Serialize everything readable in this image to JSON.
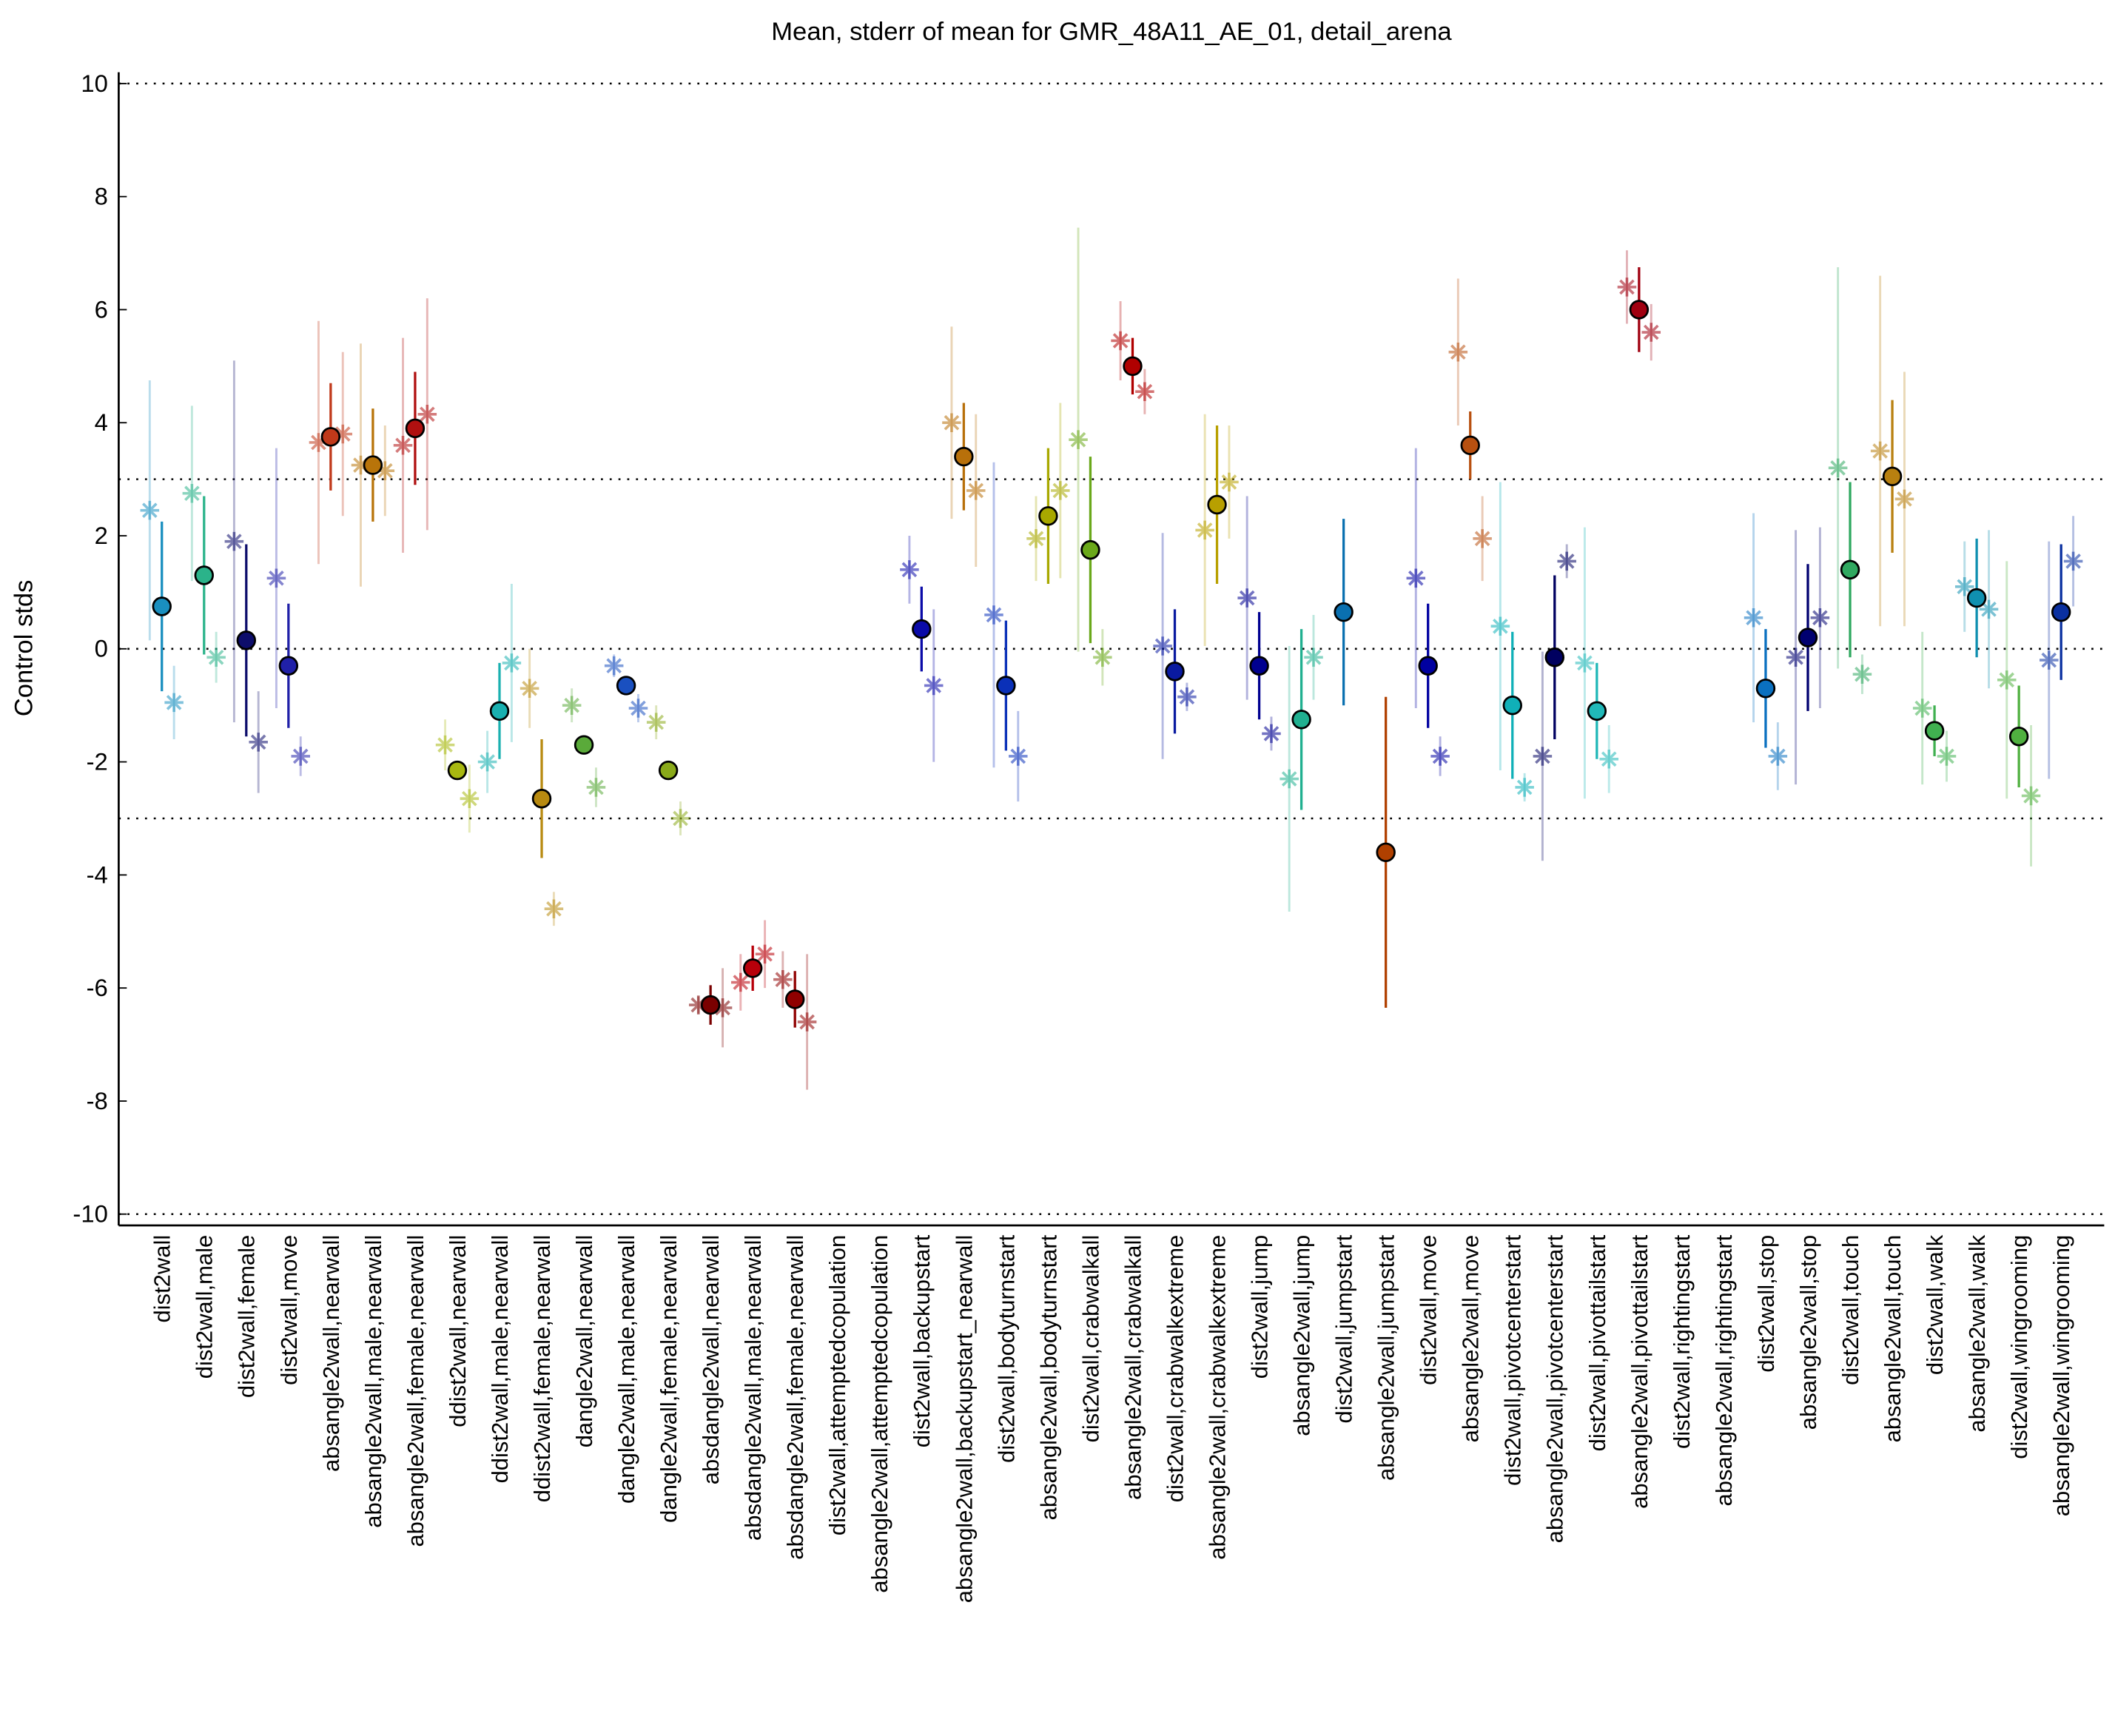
{
  "chart_data": {
    "type": "errorbar",
    "title": "Mean, stderr of mean for GMR_48A11_AE_01, detail_arena",
    "ylabel": "Control stds",
    "ylim": [
      -10.2,
      10.2
    ],
    "yticks": [
      -10,
      -8,
      -6,
      -4,
      -2,
      0,
      2,
      4,
      6,
      8,
      10
    ],
    "hlines": [
      -10,
      -3,
      0,
      3,
      10
    ],
    "categories": [
      "dist2wall",
      "dist2wall,male",
      "dist2wall,female",
      "dist2wall,move",
      "absangle2wall,nearwall",
      "absangle2wall,male,nearwall",
      "absangle2wall,female,nearwall",
      "ddist2wall,nearwall",
      "ddist2wall,male,nearwall",
      "ddist2wall,female,nearwall",
      "dangle2wall,nearwall",
      "dangle2wall,male,nearwall",
      "dangle2wall,female,nearwall",
      "absdangle2wall,nearwall",
      "absdangle2wall,male,nearwall",
      "absdangle2wall,female,nearwall",
      "dist2wall,attemptedcopulation",
      "absangle2wall,attemptedcopulation",
      "dist2wall,backupstart",
      "absangle2wall,backupstart_nearwall",
      "dist2wall,bodyturnstart",
      "absangle2wall,bodyturnstart",
      "dist2wall,crabwalkall",
      "absangle2wall,crabwalkall",
      "dist2wall,crabwalkextreme",
      "absangle2wall,crabwalkextreme",
      "dist2wall,jump",
      "absangle2wall,jump",
      "dist2wall,jumpstart",
      "absangle2wall,jumpstart",
      "dist2wall,move",
      "absangle2wall,move",
      "dist2wall,pivotcenterstart",
      "absangle2wall,pivotcenterstart",
      "dist2wall,pivottailstart",
      "absangle2wall,pivottailstart",
      "dist2wall,rightingstart",
      "absangle2wall,rightingstart",
      "dist2wall,stop",
      "absangle2wall,stop",
      "dist2wall,touch",
      "absangle2wall,touch",
      "dist2wall,walk",
      "absangle2wall,walk",
      "dist2wall,wingrooming",
      "absangle2wall,wingrooming"
    ],
    "colors": [
      "#1a8fbf",
      "#2bb38a",
      "#0d0d6b",
      "#2020a8",
      "#c0391a",
      "#b8740a",
      "#b01010",
      "#a8b810",
      "#1ab0b0",
      "#b88a10",
      "#5aaa3a",
      "#1a50c0",
      "#8aaa1a",
      "#7a0000",
      "#b8000a",
      "#900000",
      "#999999",
      "#999999",
      "#0a0aa8",
      "#b8700a",
      "#0a30b8",
      "#a8a800",
      "#6aa81a",
      "#b00000",
      "#0a1aa0",
      "#b8a000",
      "#000090",
      "#20b090",
      "#0a70b0",
      "#b04000",
      "#0000a0",
      "#b85010",
      "#10b0b8",
      "#000060",
      "#20b8b8",
      "#a00010",
      "#999999",
      "#999999",
      "#0a70c0",
      "#000070",
      "#30a860",
      "#b88010",
      "#40b050",
      "#1090b0",
      "#50b040",
      "#0a30a0"
    ],
    "series": [
      {
        "marker": "circle",
        "values": [
          0.75,
          1.3,
          0.15,
          -0.3,
          3.75,
          3.25,
          3.9,
          -2.15,
          -1.1,
          -2.65,
          -1.7,
          -0.65,
          -2.15,
          -6.3,
          -5.65,
          -6.2,
          null,
          null,
          0.35,
          3.4,
          -0.65,
          2.35,
          1.75,
          5.0,
          -0.4,
          2.55,
          -0.3,
          -1.25,
          0.65,
          -3.6,
          -0.3,
          3.6,
          -1.0,
          -0.15,
          -1.1,
          6.0,
          null,
          null,
          -0.7,
          0.2,
          1.4,
          3.05,
          -1.45,
          0.9,
          -1.55,
          0.65
        ],
        "errors": [
          1.5,
          1.4,
          1.7,
          1.1,
          0.95,
          1.0,
          1.0,
          0.15,
          0.85,
          1.05,
          0.1,
          0.1,
          0.05,
          0.35,
          0.4,
          0.5,
          null,
          null,
          0.75,
          0.95,
          1.15,
          1.2,
          1.65,
          0.5,
          1.1,
          1.4,
          0.95,
          1.6,
          1.65,
          2.75,
          1.1,
          0.6,
          1.3,
          1.45,
          0.85,
          0.75,
          null,
          null,
          1.05,
          1.3,
          1.55,
          1.35,
          0.45,
          1.05,
          0.9,
          1.2
        ]
      },
      {
        "marker": "star",
        "values": [
          2.45,
          2.75,
          1.9,
          1.25,
          3.65,
          3.25,
          3.6,
          -1.7,
          -2.0,
          -0.7,
          -1.0,
          -0.3,
          -1.3,
          -6.3,
          -5.9,
          -5.85,
          null,
          null,
          1.4,
          4.0,
          0.6,
          1.95,
          3.7,
          5.45,
          0.05,
          2.1,
          0.9,
          -2.3,
          null,
          null,
          1.25,
          5.25,
          0.4,
          -1.9,
          -0.25,
          6.4,
          null,
          null,
          0.55,
          -0.15,
          3.2,
          3.5,
          -1.05,
          1.1,
          -0.55,
          -0.2
        ],
        "errors": [
          2.3,
          1.55,
          3.2,
          2.3,
          2.15,
          2.15,
          1.9,
          0.45,
          0.55,
          0.7,
          0.3,
          0.2,
          0.3,
          0.15,
          0.5,
          0.5,
          null,
          null,
          0.6,
          1.7,
          2.7,
          0.75,
          3.75,
          0.7,
          2.0,
          2.05,
          1.8,
          2.35,
          null,
          null,
          2.3,
          1.3,
          2.55,
          1.85,
          2.4,
          0.65,
          null,
          null,
          1.85,
          2.25,
          3.55,
          3.1,
          1.35,
          0.8,
          2.1,
          2.1
        ]
      },
      {
        "marker": "star",
        "values": [
          -0.95,
          -0.15,
          -1.65,
          -1.9,
          3.8,
          3.15,
          4.15,
          -2.65,
          -0.25,
          -4.6,
          -2.45,
          -1.05,
          -3.0,
          -6.35,
          -5.4,
          -6.6,
          null,
          null,
          -0.65,
          2.8,
          -1.9,
          2.8,
          -0.15,
          4.55,
          -0.85,
          2.95,
          -1.5,
          -0.15,
          null,
          null,
          -1.9,
          1.95,
          -2.45,
          1.55,
          -1.95,
          5.6,
          null,
          null,
          -1.9,
          0.55,
          -0.45,
          2.65,
          -1.9,
          0.7,
          -2.6,
          1.55
        ],
        "errors": [
          0.65,
          0.45,
          0.9,
          0.35,
          1.45,
          0.8,
          2.05,
          0.6,
          1.4,
          0.3,
          0.35,
          0.25,
          0.3,
          0.7,
          0.6,
          1.2,
          null,
          null,
          1.35,
          1.35,
          0.8,
          1.55,
          0.5,
          0.4,
          0.25,
          1.0,
          0.3,
          0.75,
          null,
          null,
          0.35,
          0.75,
          0.25,
          0.3,
          0.6,
          0.5,
          null,
          null,
          0.6,
          1.6,
          0.35,
          2.25,
          0.45,
          1.4,
          1.25,
          0.8
        ]
      }
    ]
  }
}
